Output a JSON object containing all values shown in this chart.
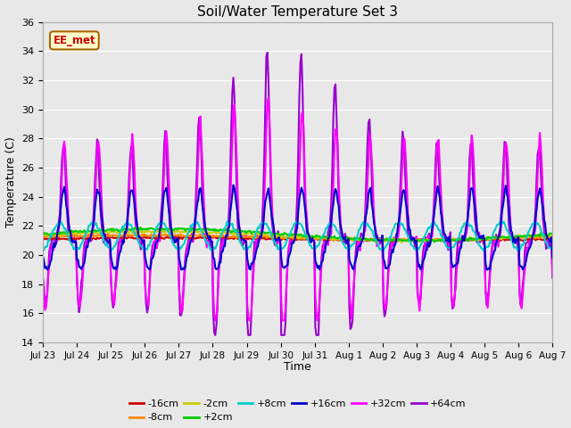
{
  "title": "Soil/Water Temperature Set 3",
  "xlabel": "Time",
  "ylabel": "Temperature (C)",
  "ylim": [
    14,
    36
  ],
  "yticks": [
    14,
    16,
    18,
    20,
    22,
    24,
    26,
    28,
    30,
    32,
    34,
    36
  ],
  "annotation_text": "EE_met",
  "annotation_bg": "#ffffcc",
  "annotation_border": "#aa6600",
  "annotation_text_color": "#cc0000",
  "fig_bg": "#e8e8e8",
  "plot_bg": "#e8e8e8",
  "grid_color": "#ffffff",
  "series": [
    {
      "label": "-16cm",
      "color": "#cc0000",
      "lw": 1.5
    },
    {
      "label": "-8cm",
      "color": "#ff8800",
      "lw": 1.5
    },
    {
      "label": "-2cm",
      "color": "#cccc00",
      "lw": 1.5
    },
    {
      "label": "+2cm",
      "color": "#00cc00",
      "lw": 1.5
    },
    {
      "label": "+8cm",
      "color": "#00cccc",
      "lw": 1.5
    },
    {
      "label": "+16cm",
      "color": "#0000cc",
      "lw": 1.5
    },
    {
      "label": "+32cm",
      "color": "#ff00ff",
      "lw": 1.5
    },
    {
      "label": "+64cm",
      "color": "#9900cc",
      "lw": 1.5
    }
  ],
  "n_points": 480,
  "x_start": 0,
  "x_end": 15,
  "xtick_positions": [
    0,
    1,
    2,
    3,
    4,
    5,
    6,
    7,
    8,
    9,
    10,
    11,
    12,
    13,
    14,
    15
  ],
  "xtick_labels": [
    "Jul 23",
    "Jul 24",
    "Jul 25",
    "Jul 26",
    "Jul 27",
    "Jul 28",
    "Jul 29",
    "Jul 30",
    "Jul 31",
    "Aug 1",
    "Aug 2",
    "Aug 3",
    "Aug 4",
    "Aug 5",
    "Aug 6",
    "Aug 7"
  ],
  "legend_row1": [
    "-16cm",
    "-8cm",
    "-2cm",
    "+2cm",
    "+8cm",
    "+16cm"
  ],
  "legend_row2": [
    "+32cm",
    "+64cm"
  ]
}
